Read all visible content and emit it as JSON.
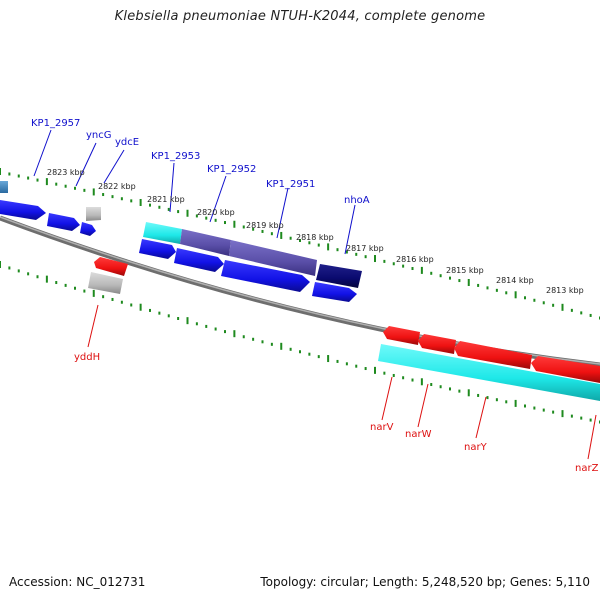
{
  "title": "Klebsiella pneumoniae NTUH-K2044, complete genome",
  "footer": {
    "accession": "Accession: NC_012731",
    "summary": "Topology: circular; Length: 5,248,520 bp; Genes: 5,110"
  },
  "colors": {
    "backbone": "#8a8a8a",
    "tick": "#1e8a1e",
    "forward_label": "#1010cc",
    "reverse_label": "#dd1010",
    "blue_gene": "#1212e6",
    "red_gene": "#ee1111",
    "cyan_gene": "#1ee8e8",
    "grey_gene": "#b8b8b8",
    "slate_gene": "#5a4fa8",
    "navy_gene": "#0a0a6e"
  },
  "tick_labels": [
    "2823 kbp",
    "2822 kbp",
    "2821 kbp",
    "2820 kbp",
    "2819 kbp",
    "2818 kbp",
    "2817 kbp",
    "2816 kbp",
    "2815 kbp",
    "2814 kbp",
    "2813 kbp"
  ],
  "forward_gene_labels": [
    "KP1_2957",
    "yncG",
    "ydcE",
    "KP1_2953",
    "KP1_2952",
    "KP1_2951",
    "nhoA"
  ],
  "reverse_gene_labels": [
    "yddH",
    "narV",
    "narW",
    "narY",
    "narZ"
  ]
}
